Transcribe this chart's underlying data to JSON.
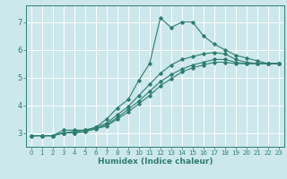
{
  "title": "",
  "xlabel": "Humidex (Indice chaleur)",
  "ylabel": "",
  "bg_color": "#cce8ec",
  "grid_color": "#ffffff",
  "line_color": "#2e7d6e",
  "xlim": [
    -0.5,
    23.5
  ],
  "ylim": [
    2.5,
    7.6
  ],
  "yticks": [
    3,
    4,
    5,
    6,
    7
  ],
  "xticks": [
    0,
    1,
    2,
    3,
    4,
    5,
    6,
    7,
    8,
    9,
    10,
    11,
    12,
    13,
    14,
    15,
    16,
    17,
    18,
    19,
    20,
    21,
    22,
    23
  ],
  "line1_x": [
    0,
    1,
    2,
    3,
    4,
    5,
    6,
    7,
    8,
    9,
    10,
    11,
    12,
    13,
    14,
    15,
    16,
    17,
    18,
    19,
    20,
    21,
    22,
    23
  ],
  "line1_y": [
    2.9,
    2.9,
    2.9,
    3.1,
    3.1,
    3.1,
    3.2,
    3.5,
    3.9,
    4.2,
    4.9,
    5.5,
    7.15,
    6.8,
    7.0,
    7.0,
    6.5,
    6.2,
    6.0,
    5.8,
    5.7,
    5.6,
    5.5,
    5.5
  ],
  "line2_x": [
    0,
    1,
    2,
    3,
    4,
    5,
    6,
    7,
    8,
    9,
    10,
    11,
    12,
    13,
    14,
    15,
    16,
    17,
    18,
    19,
    20,
    21,
    22,
    23
  ],
  "line2_y": [
    2.9,
    2.9,
    2.9,
    3.0,
    3.05,
    3.1,
    3.2,
    3.35,
    3.65,
    3.95,
    4.35,
    4.75,
    5.15,
    5.45,
    5.65,
    5.75,
    5.85,
    5.9,
    5.85,
    5.65,
    5.55,
    5.5,
    5.5,
    5.5
  ],
  "line3_x": [
    0,
    1,
    2,
    3,
    4,
    5,
    6,
    7,
    8,
    9,
    10,
    11,
    12,
    13,
    14,
    15,
    16,
    17,
    18,
    19,
    20,
    21,
    22,
    23
  ],
  "line3_y": [
    2.9,
    2.9,
    2.9,
    3.0,
    3.0,
    3.05,
    3.15,
    3.3,
    3.55,
    3.85,
    4.15,
    4.5,
    4.85,
    5.1,
    5.3,
    5.45,
    5.55,
    5.65,
    5.65,
    5.55,
    5.5,
    5.5,
    5.5,
    5.5
  ],
  "line4_x": [
    0,
    1,
    2,
    3,
    4,
    5,
    6,
    7,
    8,
    9,
    10,
    11,
    12,
    13,
    14,
    15,
    16,
    17,
    18,
    19,
    20,
    21,
    22,
    23
  ],
  "line4_y": [
    2.9,
    2.9,
    2.9,
    3.0,
    3.0,
    3.05,
    3.15,
    3.25,
    3.5,
    3.75,
    4.05,
    4.35,
    4.7,
    4.95,
    5.2,
    5.35,
    5.45,
    5.55,
    5.55,
    5.5,
    5.5,
    5.5,
    5.5,
    5.5
  ]
}
